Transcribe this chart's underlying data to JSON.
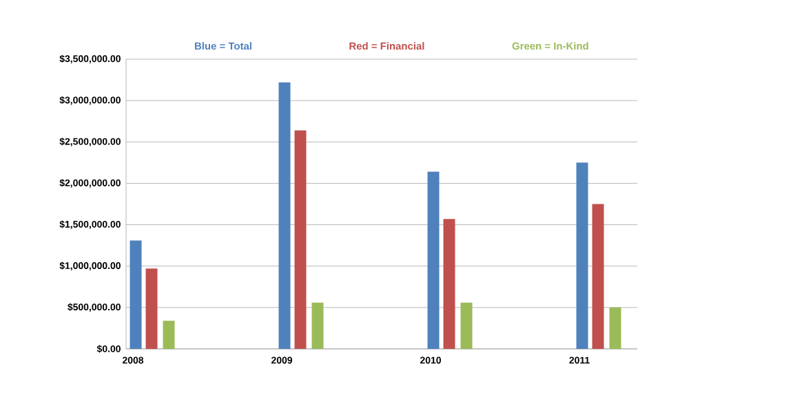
{
  "chart_data": {
    "type": "bar",
    "categories": [
      "2008",
      "2009",
      "2010",
      "2011"
    ],
    "series": [
      {
        "name": "Blue = Total",
        "color": "#4f81bd",
        "values": [
          1310000,
          3220000,
          2140000,
          2250000
        ]
      },
      {
        "name": "Red = Financial",
        "color": "#c0504d",
        "values": [
          970000,
          2640000,
          1570000,
          1750000
        ]
      },
      {
        "name": "Green = In-Kind",
        "color": "#9bbb59",
        "values": [
          340000,
          560000,
          560000,
          500000
        ]
      }
    ],
    "ylim": [
      0,
      3500000
    ],
    "yticks": [
      {
        "value": 0,
        "label": "$0.00"
      },
      {
        "value": 500000,
        "label": "$500,000.00"
      },
      {
        "value": 1000000,
        "label": "$1,000,000.00"
      },
      {
        "value": 1500000,
        "label": "$1,500,000.00"
      },
      {
        "value": 2000000,
        "label": "$2,000,000.00"
      },
      {
        "value": 2500000,
        "label": "$2,500,000.00"
      },
      {
        "value": 3000000,
        "label": "$3,000,000.00"
      },
      {
        "value": 3500000,
        "label": "$3,500,000.00"
      }
    ],
    "grid": "y",
    "legend": "top"
  }
}
